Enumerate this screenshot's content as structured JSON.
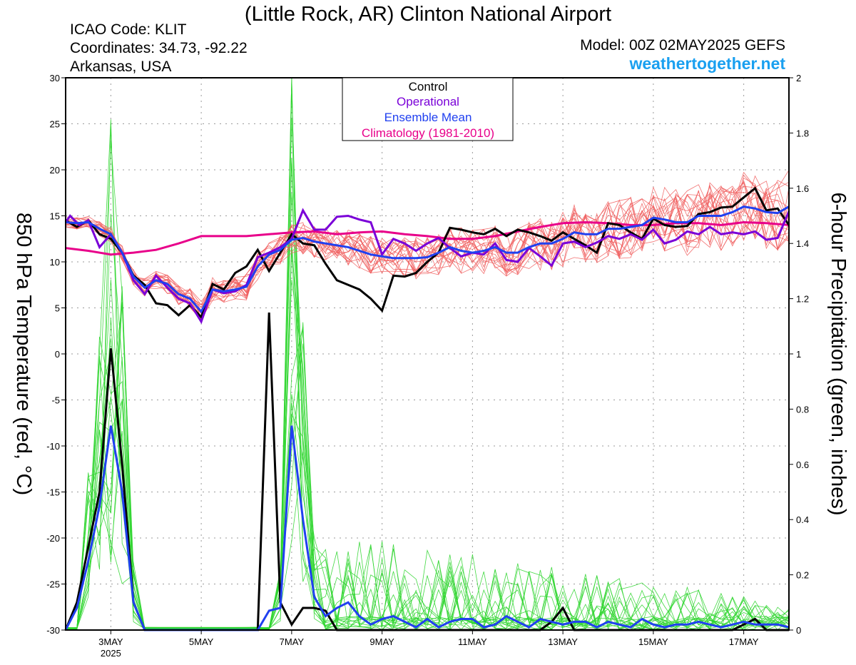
{
  "header": {
    "title": "(Little Rock, AR) Clinton National Airport",
    "icao": "ICAO Code: KLIT",
    "coords": "Coordinates: 34.73, -92.22",
    "region": "Arkansas, USA",
    "model": "Model: 00Z 02MAY2025 GEFS",
    "site": "weathertogether.net"
  },
  "legend": {
    "control": "Control",
    "operational": "Operational",
    "mean": "Ensemble Mean",
    "climo": "Climatology (1981-2010)"
  },
  "colors": {
    "control": "#000000",
    "operational": "#7a00d8",
    "mean": "#2040f0",
    "climo": "#e8008a",
    "members_temp": "#f05a5a",
    "members_precip": "#2fd52f",
    "site": "#1aa0f0"
  },
  "chart_data": {
    "type": "line",
    "ylabel_left": "850 hPa Temperature (red, °C)",
    "ylabel_right": "6-hour Precipitation (green, inches)",
    "ylim_left": [
      -30,
      30
    ],
    "ylim_right": [
      0,
      2
    ],
    "yticks_left": [
      "30",
      "25",
      "20",
      "15",
      "10",
      "5",
      "0",
      "-5",
      "-10",
      "-15",
      "-20",
      "-25",
      "-30"
    ],
    "yticks_right": [
      "2",
      "1.8",
      "1.6",
      "1.4",
      "1.2",
      "1",
      "0.8",
      "0.6",
      "0.4",
      "0.2",
      "0"
    ],
    "xlim_days": [
      2.0,
      18.0
    ],
    "xticks": [
      {
        "day": 3,
        "label": "3MAY",
        "sub": "2025"
      },
      {
        "day": 5,
        "label": "5MAY"
      },
      {
        "day": 7,
        "label": "7MAY"
      },
      {
        "day": 9,
        "label": "9MAY"
      },
      {
        "day": 11,
        "label": "11MAY"
      },
      {
        "day": 13,
        "label": "13MAY"
      },
      {
        "day": 15,
        "label": "15MAY"
      },
      {
        "day": 17,
        "label": "17MAY"
      }
    ],
    "temp_series": {
      "control": [
        [
          2.0,
          14.5
        ],
        [
          2.25,
          13.8
        ],
        [
          2.5,
          14.5
        ],
        [
          2.75,
          13.0
        ],
        [
          3.0,
          12.5
        ],
        [
          3.25,
          11.0
        ],
        [
          3.5,
          8.5
        ],
        [
          3.75,
          7.5
        ],
        [
          4.0,
          5.5
        ],
        [
          4.25,
          5.3
        ],
        [
          4.5,
          4.2
        ],
        [
          4.75,
          5.3
        ],
        [
          5.0,
          4.0
        ],
        [
          5.25,
          7.6
        ],
        [
          5.5,
          7.0
        ],
        [
          5.75,
          8.8
        ],
        [
          6.0,
          9.5
        ],
        [
          6.25,
          11.3
        ],
        [
          6.5,
          9.0
        ],
        [
          6.75,
          11.0
        ],
        [
          7.0,
          13.0
        ],
        [
          7.25,
          12.0
        ],
        [
          7.5,
          11.8
        ],
        [
          7.75,
          9.8
        ],
        [
          8.0,
          8.0
        ],
        [
          8.25,
          7.5
        ],
        [
          8.5,
          7.0
        ],
        [
          8.75,
          6.0
        ],
        [
          9.0,
          4.7
        ],
        [
          9.25,
          8.5
        ],
        [
          9.5,
          8.4
        ],
        [
          9.75,
          8.8
        ],
        [
          10.0,
          10.0
        ],
        [
          10.25,
          11.0
        ],
        [
          10.5,
          13.7
        ],
        [
          10.75,
          13.5
        ],
        [
          11.0,
          13.2
        ],
        [
          11.25,
          13.0
        ],
        [
          11.5,
          13.6
        ],
        [
          11.75,
          12.8
        ],
        [
          12.0,
          13.5
        ],
        [
          12.25,
          13.2
        ],
        [
          12.5,
          12.8
        ],
        [
          12.75,
          12.3
        ],
        [
          13.0,
          13.2
        ],
        [
          13.25,
          12.5
        ],
        [
          13.5,
          11.8
        ],
        [
          13.75,
          11.0
        ],
        [
          14.0,
          14.2
        ],
        [
          14.25,
          14.0
        ],
        [
          14.5,
          13.2
        ],
        [
          14.75,
          12.5
        ],
        [
          15.0,
          14.7
        ],
        [
          15.25,
          14.0
        ],
        [
          15.5,
          13.8
        ],
        [
          15.75,
          13.9
        ],
        [
          16.0,
          15.2
        ],
        [
          16.25,
          15.4
        ],
        [
          16.5,
          15.9
        ],
        [
          16.75,
          16.0
        ],
        [
          17.0,
          17.0
        ],
        [
          17.25,
          18.0
        ],
        [
          17.5,
          15.6
        ],
        [
          17.75,
          15.8
        ],
        [
          18.0,
          14.0
        ]
      ],
      "operational": [
        [
          2.0,
          14.3
        ],
        [
          2.1,
          15.0
        ],
        [
          2.3,
          14.0
        ],
        [
          2.5,
          14.5
        ],
        [
          2.75,
          11.6
        ],
        [
          3.0,
          13.0
        ],
        [
          3.25,
          11.0
        ],
        [
          3.5,
          8.0
        ],
        [
          3.75,
          6.5
        ],
        [
          4.0,
          8.5
        ],
        [
          4.25,
          7.2
        ],
        [
          4.5,
          6.0
        ],
        [
          4.75,
          5.5
        ],
        [
          5.0,
          3.5
        ],
        [
          5.25,
          7.0
        ],
        [
          5.5,
          6.6
        ],
        [
          5.75,
          6.8
        ],
        [
          6.0,
          7.5
        ],
        [
          6.25,
          10.5
        ],
        [
          6.5,
          11.0
        ],
        [
          6.75,
          11.6
        ],
        [
          7.0,
          12.5
        ],
        [
          7.25,
          15.6
        ],
        [
          7.5,
          13.5
        ],
        [
          7.75,
          13.5
        ],
        [
          8.0,
          14.9
        ],
        [
          8.25,
          15.0
        ],
        [
          8.5,
          14.6
        ],
        [
          8.75,
          14.3
        ],
        [
          9.0,
          10.8
        ],
        [
          9.25,
          12.5
        ],
        [
          9.5,
          12.0
        ],
        [
          9.75,
          11.2
        ],
        [
          10.0,
          12.0
        ],
        [
          10.25,
          12.6
        ],
        [
          10.5,
          11.5
        ],
        [
          10.75,
          10.6
        ],
        [
          11.0,
          11.0
        ],
        [
          11.25,
          10.8
        ],
        [
          11.5,
          12.0
        ],
        [
          11.75,
          10.2
        ],
        [
          12.0,
          10.0
        ],
        [
          12.25,
          11.5
        ],
        [
          12.5,
          10.6
        ],
        [
          12.75,
          9.6
        ],
        [
          13.0,
          12.0
        ],
        [
          13.25,
          12.2
        ],
        [
          13.5,
          11.6
        ],
        [
          13.75,
          12.1
        ],
        [
          14.0,
          12.8
        ],
        [
          14.25,
          12.5
        ],
        [
          14.5,
          13.0
        ],
        [
          14.75,
          12.4
        ],
        [
          15.0,
          13.5
        ],
        [
          15.25,
          12.0
        ],
        [
          15.5,
          12.4
        ],
        [
          15.75,
          13.3
        ],
        [
          16.0,
          13.0
        ],
        [
          16.25,
          13.8
        ],
        [
          16.5,
          13.0
        ],
        [
          16.75,
          13.2
        ],
        [
          17.0,
          13.0
        ],
        [
          17.25,
          13.3
        ],
        [
          17.5,
          12.4
        ],
        [
          17.75,
          12.6
        ],
        [
          18.0,
          15.5
        ]
      ],
      "mean": [
        [
          2.0,
          14.3
        ],
        [
          2.25,
          14.2
        ],
        [
          2.5,
          14.3
        ],
        [
          2.75,
          13.6
        ],
        [
          3.0,
          13.0
        ],
        [
          3.25,
          11.0
        ],
        [
          3.5,
          8.4
        ],
        [
          3.75,
          7.2
        ],
        [
          4.0,
          8.0
        ],
        [
          4.25,
          7.6
        ],
        [
          4.5,
          6.5
        ],
        [
          4.75,
          6.0
        ],
        [
          5.0,
          4.6
        ],
        [
          5.25,
          7.0
        ],
        [
          5.5,
          6.8
        ],
        [
          5.75,
          7.0
        ],
        [
          6.0,
          7.3
        ],
        [
          6.25,
          9.5
        ],
        [
          6.5,
          10.8
        ],
        [
          6.75,
          11.3
        ],
        [
          7.0,
          12.4
        ],
        [
          7.25,
          12.6
        ],
        [
          7.5,
          12.2
        ],
        [
          7.75,
          12.0
        ],
        [
          8.0,
          11.8
        ],
        [
          8.25,
          11.6
        ],
        [
          8.5,
          11.2
        ],
        [
          8.75,
          10.8
        ],
        [
          9.0,
          10.6
        ],
        [
          9.25,
          10.4
        ],
        [
          9.5,
          10.4
        ],
        [
          9.75,
          10.4
        ],
        [
          10.0,
          10.5
        ],
        [
          10.25,
          11.0
        ],
        [
          10.5,
          11.6
        ],
        [
          10.75,
          11.2
        ],
        [
          11.0,
          11.0
        ],
        [
          11.25,
          11.2
        ],
        [
          11.5,
          11.6
        ],
        [
          11.75,
          11.0
        ],
        [
          12.0,
          11.0
        ],
        [
          12.25,
          11.6
        ],
        [
          12.5,
          12.0
        ],
        [
          12.75,
          12.0
        ],
        [
          13.0,
          12.5
        ],
        [
          13.25,
          13.2
        ],
        [
          13.5,
          13.0
        ],
        [
          13.75,
          13.0
        ],
        [
          14.0,
          13.6
        ],
        [
          14.25,
          13.6
        ],
        [
          14.5,
          13.8
        ],
        [
          14.75,
          14.0
        ],
        [
          15.0,
          14.8
        ],
        [
          15.25,
          14.6
        ],
        [
          15.5,
          14.3
        ],
        [
          15.75,
          14.3
        ],
        [
          16.0,
          15.0
        ],
        [
          16.25,
          15.0
        ],
        [
          16.5,
          15.0
        ],
        [
          16.75,
          15.4
        ],
        [
          17.0,
          16.0
        ],
        [
          17.25,
          15.8
        ],
        [
          17.5,
          15.4
        ],
        [
          17.75,
          15.3
        ],
        [
          18.0,
          16.0
        ]
      ],
      "climo": [
        [
          2.0,
          11.5
        ],
        [
          2.5,
          11.2
        ],
        [
          3.0,
          10.8
        ],
        [
          3.5,
          11.0
        ],
        [
          4.0,
          11.3
        ],
        [
          4.5,
          12.0
        ],
        [
          5.0,
          12.8
        ],
        [
          5.5,
          12.8
        ],
        [
          6.0,
          12.8
        ],
        [
          6.5,
          13.0
        ],
        [
          7.0,
          13.2
        ],
        [
          7.5,
          13.3
        ],
        [
          8.0,
          13.0
        ],
        [
          8.5,
          13.2
        ],
        [
          9.0,
          13.3
        ],
        [
          9.5,
          13.0
        ],
        [
          10.0,
          12.8
        ],
        [
          10.5,
          12.5
        ],
        [
          11.0,
          12.5
        ],
        [
          11.5,
          12.8
        ],
        [
          12.0,
          13.3
        ],
        [
          12.5,
          13.8
        ],
        [
          13.0,
          14.2
        ],
        [
          13.5,
          14.3
        ],
        [
          14.0,
          14.2
        ],
        [
          14.5,
          14.0
        ],
        [
          15.0,
          14.0
        ],
        [
          15.5,
          14.2
        ],
        [
          16.0,
          14.2
        ],
        [
          16.5,
          14.0
        ],
        [
          17.0,
          14.3
        ],
        [
          17.5,
          14.2
        ],
        [
          18.0,
          14.0
        ]
      ]
    },
    "precip_series": {
      "control": [
        [
          2.0,
          0.0
        ],
        [
          2.25,
          0.1
        ],
        [
          2.5,
          0.3
        ],
        [
          2.75,
          0.5
        ],
        [
          3.0,
          1.02
        ],
        [
          3.25,
          0.6
        ],
        [
          3.5,
          0.1
        ],
        [
          3.75,
          0.0
        ],
        [
          6.0,
          0.0
        ],
        [
          6.25,
          0.0
        ],
        [
          6.5,
          1.15
        ],
        [
          6.75,
          0.1
        ],
        [
          7.0,
          0.02
        ],
        [
          7.25,
          0.08
        ],
        [
          7.5,
          0.08
        ],
        [
          7.75,
          0.07
        ],
        [
          8.0,
          0.0
        ],
        [
          12.5,
          0.0
        ],
        [
          12.75,
          0.03
        ],
        [
          13.0,
          0.08
        ],
        [
          13.25,
          0.0
        ],
        [
          15.5,
          0.0
        ],
        [
          16.75,
          0.0
        ],
        [
          17.0,
          0.02
        ],
        [
          17.25,
          0.04
        ],
        [
          17.5,
          0.0
        ],
        [
          18.0,
          0.0
        ]
      ],
      "mean": [
        [
          2.0,
          0.0
        ],
        [
          2.25,
          0.08
        ],
        [
          2.5,
          0.25
        ],
        [
          2.75,
          0.45
        ],
        [
          3.0,
          0.74
        ],
        [
          3.25,
          0.5
        ],
        [
          3.5,
          0.1
        ],
        [
          3.75,
          0.0
        ],
        [
          6.25,
          0.0
        ],
        [
          6.5,
          0.07
        ],
        [
          6.75,
          0.08
        ],
        [
          7.0,
          0.74
        ],
        [
          7.25,
          0.4
        ],
        [
          7.5,
          0.12
        ],
        [
          7.75,
          0.05
        ],
        [
          8.0,
          0.08
        ],
        [
          8.25,
          0.1
        ],
        [
          8.5,
          0.05
        ],
        [
          8.75,
          0.02
        ],
        [
          9.0,
          0.04
        ],
        [
          9.25,
          0.05
        ],
        [
          9.5,
          0.03
        ],
        [
          9.75,
          0.01
        ],
        [
          10.0,
          0.04
        ],
        [
          10.25,
          0.01
        ],
        [
          10.5,
          0.03
        ],
        [
          10.75,
          0.04
        ],
        [
          11.0,
          0.04
        ],
        [
          11.25,
          0.01
        ],
        [
          11.5,
          0.02
        ],
        [
          11.75,
          0.05
        ],
        [
          12.0,
          0.03
        ],
        [
          12.25,
          0.01
        ],
        [
          12.5,
          0.04
        ],
        [
          12.75,
          0.03
        ],
        [
          13.0,
          0.02
        ],
        [
          13.25,
          0.03
        ],
        [
          13.5,
          0.03
        ],
        [
          13.75,
          0.01
        ],
        [
          14.0,
          0.03
        ],
        [
          14.25,
          0.02
        ],
        [
          14.5,
          0.01
        ],
        [
          14.75,
          0.04
        ],
        [
          15.0,
          0.02
        ],
        [
          15.25,
          0.01
        ],
        [
          15.5,
          0.02
        ],
        [
          15.75,
          0.02
        ],
        [
          16.0,
          0.03
        ],
        [
          16.25,
          0.02
        ],
        [
          16.5,
          0.01
        ],
        [
          16.75,
          0.02
        ],
        [
          17.0,
          0.03
        ],
        [
          17.25,
          0.02
        ],
        [
          17.5,
          0.02
        ],
        [
          17.75,
          0.02
        ],
        [
          18.0,
          0.01
        ]
      ]
    }
  }
}
